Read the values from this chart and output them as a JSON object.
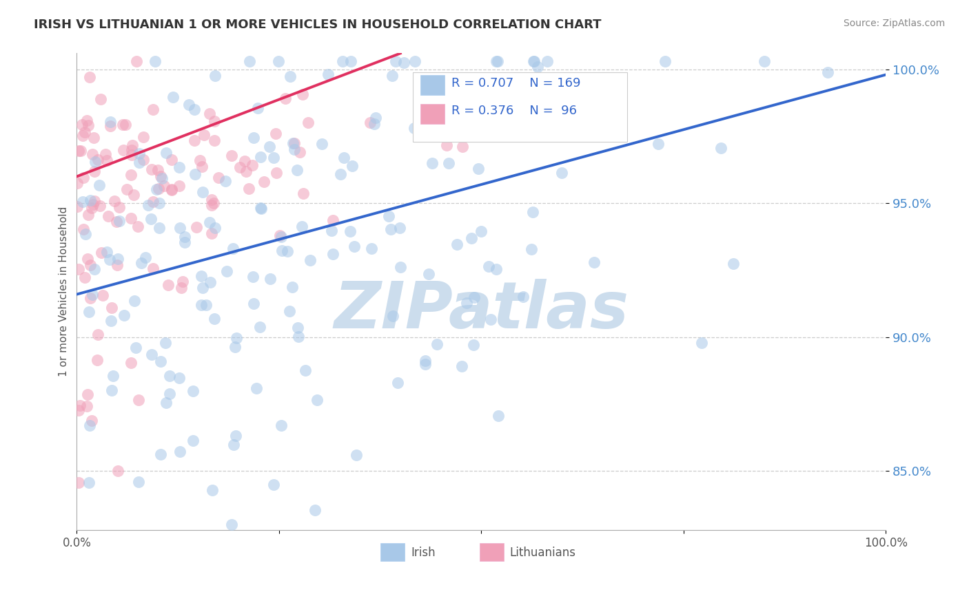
{
  "title": "IRISH VS LITHUANIAN 1 OR MORE VEHICLES IN HOUSEHOLD CORRELATION CHART",
  "source_text": "Source: ZipAtlas.com",
  "ylabel": "1 or more Vehicles in Household",
  "ytick_labels": [
    "85.0%",
    "90.0%",
    "95.0%",
    "100.0%"
  ],
  "ytick_values": [
    0.85,
    0.9,
    0.95,
    1.0
  ],
  "xmin": 0.0,
  "xmax": 1.0,
  "ymin": 0.828,
  "ymax": 1.006,
  "legend_R_irish": "0.707",
  "legend_N_irish": "169",
  "legend_R_lith": "0.376",
  "legend_N_lith": "96",
  "irish_color": "#a8c8e8",
  "lith_color": "#f0a0b8",
  "irish_line_color": "#3366cc",
  "lith_line_color": "#e03060",
  "ytick_color": "#4488cc",
  "background_color": "#ffffff",
  "watermark_color": "#ccdded",
  "irish_trend_x0": 0.0,
  "irish_trend_y0": 0.916,
  "irish_trend_x1": 1.0,
  "irish_trend_y1": 0.998,
  "lith_trend_x0": 0.0,
  "lith_trend_y0": 0.96,
  "lith_trend_x1": 0.4,
  "lith_trend_y1": 1.006
}
